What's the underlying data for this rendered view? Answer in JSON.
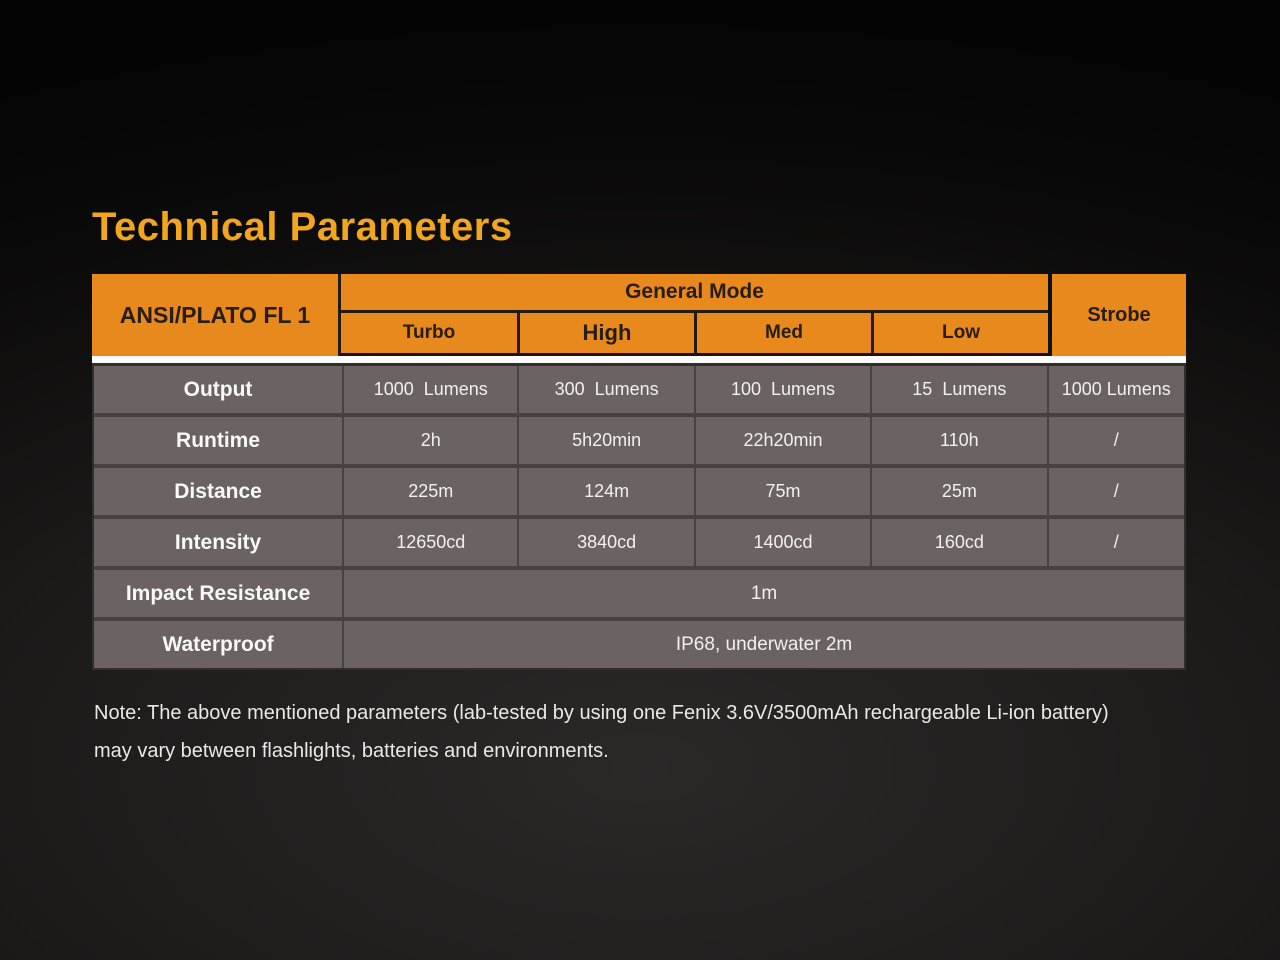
{
  "title": "Technical Parameters",
  "colors": {
    "accent_orange": "#E8891E",
    "title_gold": "#F2A51F",
    "row_gray": "#6A6362",
    "divider": "#474140",
    "white_line": "#FCFCFC",
    "background": "#0B0A0A"
  },
  "table": {
    "corner_label": "ANSI/PLATO FL 1",
    "group_header": "General Mode",
    "mode_columns": [
      "Turbo",
      "High",
      "Med",
      "Low"
    ],
    "strobe_label": "Strobe",
    "rows": [
      {
        "label": "Output",
        "values": [
          "1000  Lumens",
          "300  Lumens",
          "100  Lumens",
          "15  Lumens"
        ],
        "strobe": "1000 Lumens"
      },
      {
        "label": "Runtime",
        "values": [
          "2h",
          "5h20min",
          "22h20min",
          "110h"
        ],
        "strobe": "/"
      },
      {
        "label": "Distance",
        "values": [
          "225m",
          "124m",
          "75m",
          "25m"
        ],
        "strobe": "/"
      },
      {
        "label": "Intensity",
        "values": [
          "12650cd",
          "3840cd",
          "1400cd",
          "160cd"
        ],
        "strobe": "/"
      }
    ],
    "span_rows": [
      {
        "label": "Impact Resistance",
        "value": "1m"
      },
      {
        "label": "Waterproof",
        "value": "IP68, underwater 2m"
      }
    ]
  },
  "note": {
    "lines": [
      "Note: The above mentioned parameters (lab-tested by using one Fenix 3.6V/3500mAh rechargeable Li-ion battery)",
      "may vary between flashlights, batteries and environments."
    ]
  }
}
